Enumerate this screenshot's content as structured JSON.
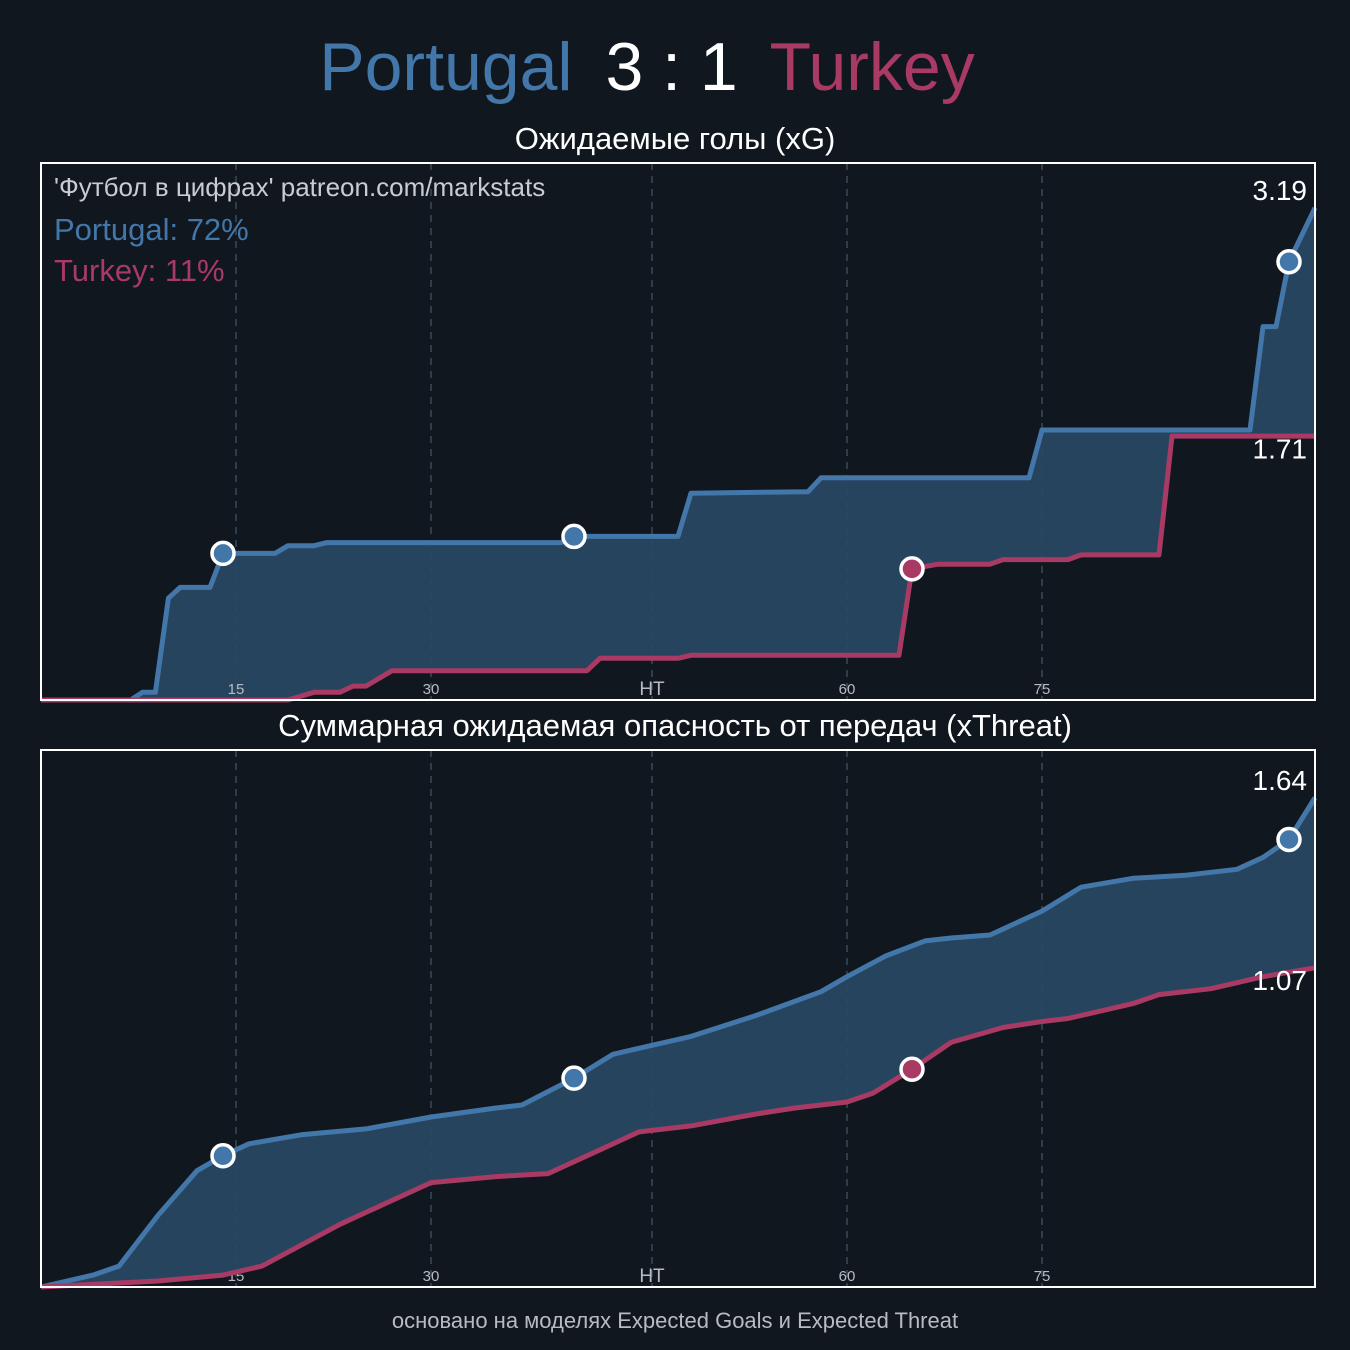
{
  "header": {
    "home": "Portugal",
    "score": "3 : 1",
    "away": "Turkey"
  },
  "footer": "основано на моделях Expected Goals и Expected Threat",
  "chart_data": [
    {
      "type": "line",
      "title": "Ожидаемые голы (xG)",
      "notes": [
        "'Футбол в цифрах' patreon.com/markstats",
        "Portugal: 72%",
        "Turkey: 11%"
      ],
      "xlim": [
        0,
        98
      ],
      "ylim": [
        0,
        3.48
      ],
      "xticks": [
        15,
        30,
        {
          "value": 47,
          "label": "HT"
        },
        {
          "value": 62,
          "label": "60"
        },
        {
          "value": 77,
          "label": "75"
        }
      ],
      "grid": true,
      "series": [
        {
          "name": "Portugal",
          "color": "#4377a9",
          "x": [
            0,
            6.9,
            7.8,
            8.8,
            9.8,
            10.7,
            13,
            14,
            18,
            19,
            21,
            22,
            40,
            41,
            49,
            50,
            59,
            60,
            76,
            77,
            93,
            94,
            95,
            96,
            98
          ],
          "values": [
            0,
            0,
            0.05,
            0.05,
            0.66,
            0.73,
            0.73,
            0.95,
            0.95,
            1.0,
            1.0,
            1.02,
            1.02,
            1.06,
            1.06,
            1.34,
            1.35,
            1.44,
            1.44,
            1.75,
            1.75,
            2.42,
            2.42,
            2.84,
            3.19
          ],
          "goals": [
            14,
            41,
            96
          ]
        },
        {
          "name": "Turkey",
          "color": "#a83a64",
          "x": [
            0,
            19,
            21,
            23,
            24,
            25,
            27,
            42,
            43,
            49,
            50,
            66,
            67,
            69,
            73,
            74,
            79,
            80,
            86,
            87,
            98
          ],
          "values": [
            0,
            0,
            0.05,
            0.05,
            0.09,
            0.09,
            0.19,
            0.19,
            0.27,
            0.27,
            0.29,
            0.29,
            0.85,
            0.88,
            0.88,
            0.91,
            0.91,
            0.94,
            0.94,
            1.71,
            1.71
          ],
          "goals": [
            67
          ]
        }
      ]
    },
    {
      "type": "line",
      "title": "Суммарная ожидаемая опасность от передач (xThreat)",
      "xlim": [
        0,
        98
      ],
      "ylim": [
        0,
        1.8
      ],
      "xticks": [
        15,
        30,
        {
          "value": 47,
          "label": "HT"
        },
        {
          "value": 62,
          "label": "60"
        },
        {
          "value": 77,
          "label": "75"
        }
      ],
      "grid": true,
      "series": [
        {
          "name": "Portugal",
          "color": "#4377a9",
          "x": [
            0,
            4,
            6,
            9,
            12,
            14,
            16,
            20,
            25,
            30,
            35,
            37,
            41,
            44,
            47,
            50,
            55,
            60,
            62,
            65,
            68,
            70,
            73,
            77,
            80,
            84,
            88,
            92,
            94,
            96,
            98
          ],
          "values": [
            0,
            0.04,
            0.07,
            0.24,
            0.39,
            0.44,
            0.48,
            0.51,
            0.53,
            0.57,
            0.6,
            0.61,
            0.7,
            0.78,
            0.81,
            0.84,
            0.91,
            0.99,
            1.04,
            1.11,
            1.16,
            1.17,
            1.18,
            1.26,
            1.34,
            1.37,
            1.38,
            1.4,
            1.44,
            1.5,
            1.64
          ],
          "goals": [
            14,
            41,
            96
          ]
        },
        {
          "name": "Turkey",
          "color": "#a83a64",
          "x": [
            0,
            9,
            14,
            17,
            20,
            23,
            25,
            30,
            35,
            39,
            43,
            46,
            50,
            55,
            58,
            62,
            64,
            67,
            70,
            74,
            77,
            79,
            84,
            86,
            90,
            94,
            98
          ],
          "values": [
            0,
            0.02,
            0.04,
            0.07,
            0.14,
            0.21,
            0.25,
            0.35,
            0.37,
            0.38,
            0.46,
            0.52,
            0.54,
            0.58,
            0.6,
            0.62,
            0.65,
            0.73,
            0.82,
            0.87,
            0.89,
            0.9,
            0.95,
            0.98,
            1.0,
            1.04,
            1.07
          ],
          "goals": [
            67
          ]
        }
      ]
    }
  ]
}
